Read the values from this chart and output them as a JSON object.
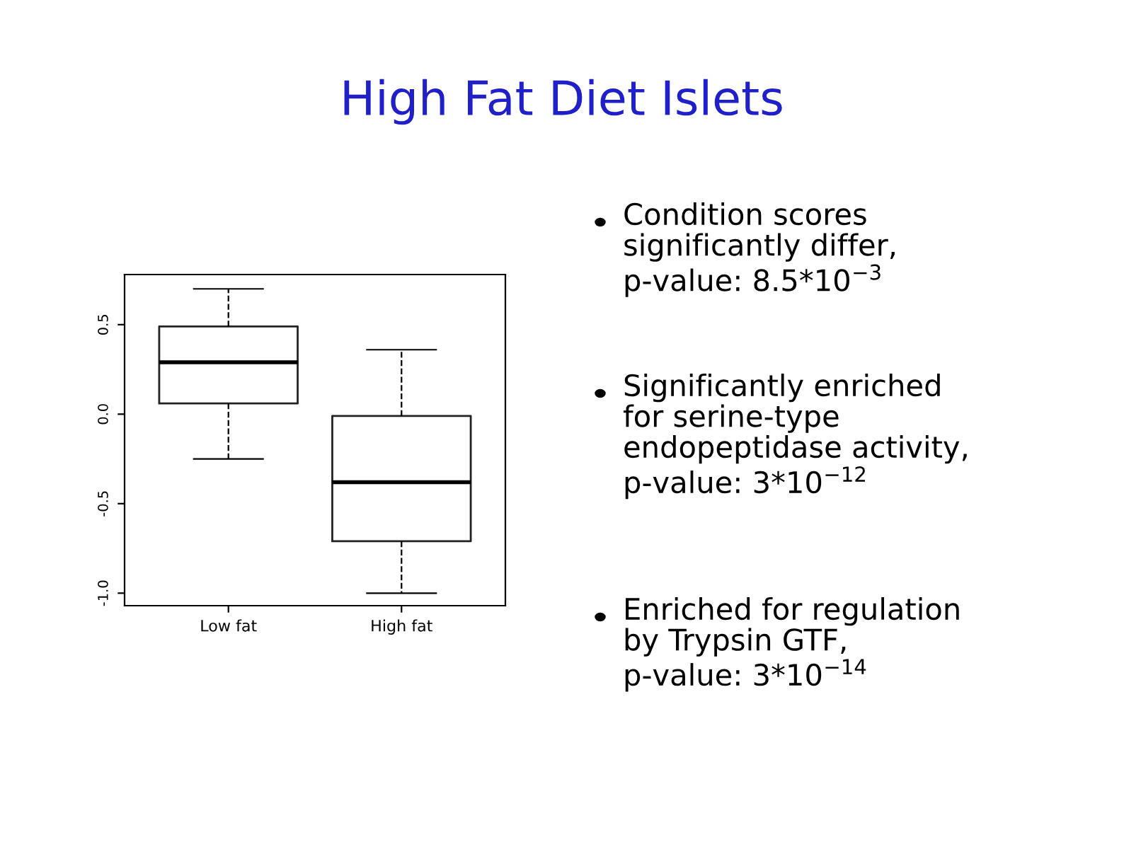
{
  "chart_data": {
    "type": "box",
    "title": "High Fat Diet Islets",
    "categories": [
      "Low fat",
      "High fat"
    ],
    "boxes": [
      {
        "low": -0.25,
        "q1": 0.06,
        "median": 0.29,
        "q3": 0.49,
        "high": 0.7
      },
      {
        "low": -1.0,
        "q1": -0.71,
        "median": -0.38,
        "q3": -0.01,
        "high": 0.36
      }
    ],
    "ylim": [
      -1.07,
      0.78
    ],
    "yticks": [
      {
        "value": -1,
        "label": "-1.0"
      },
      -0.5,
      {
        "value": 0,
        "label": "0.0"
      },
      0.5
    ],
    "grid": false,
    "annotations": [
      "Condition scores\nsignificantly differ,\np-value: 8.5*10$^{−3}$",
      "Significantly enriched\nfor serine-type\nendopeptidase activity,\np-value: 3*10$^{−12}$",
      "Enriched for regulation\nby Trypsin GTF,\np-value: 3*10$^{−14}$"
    ]
  }
}
